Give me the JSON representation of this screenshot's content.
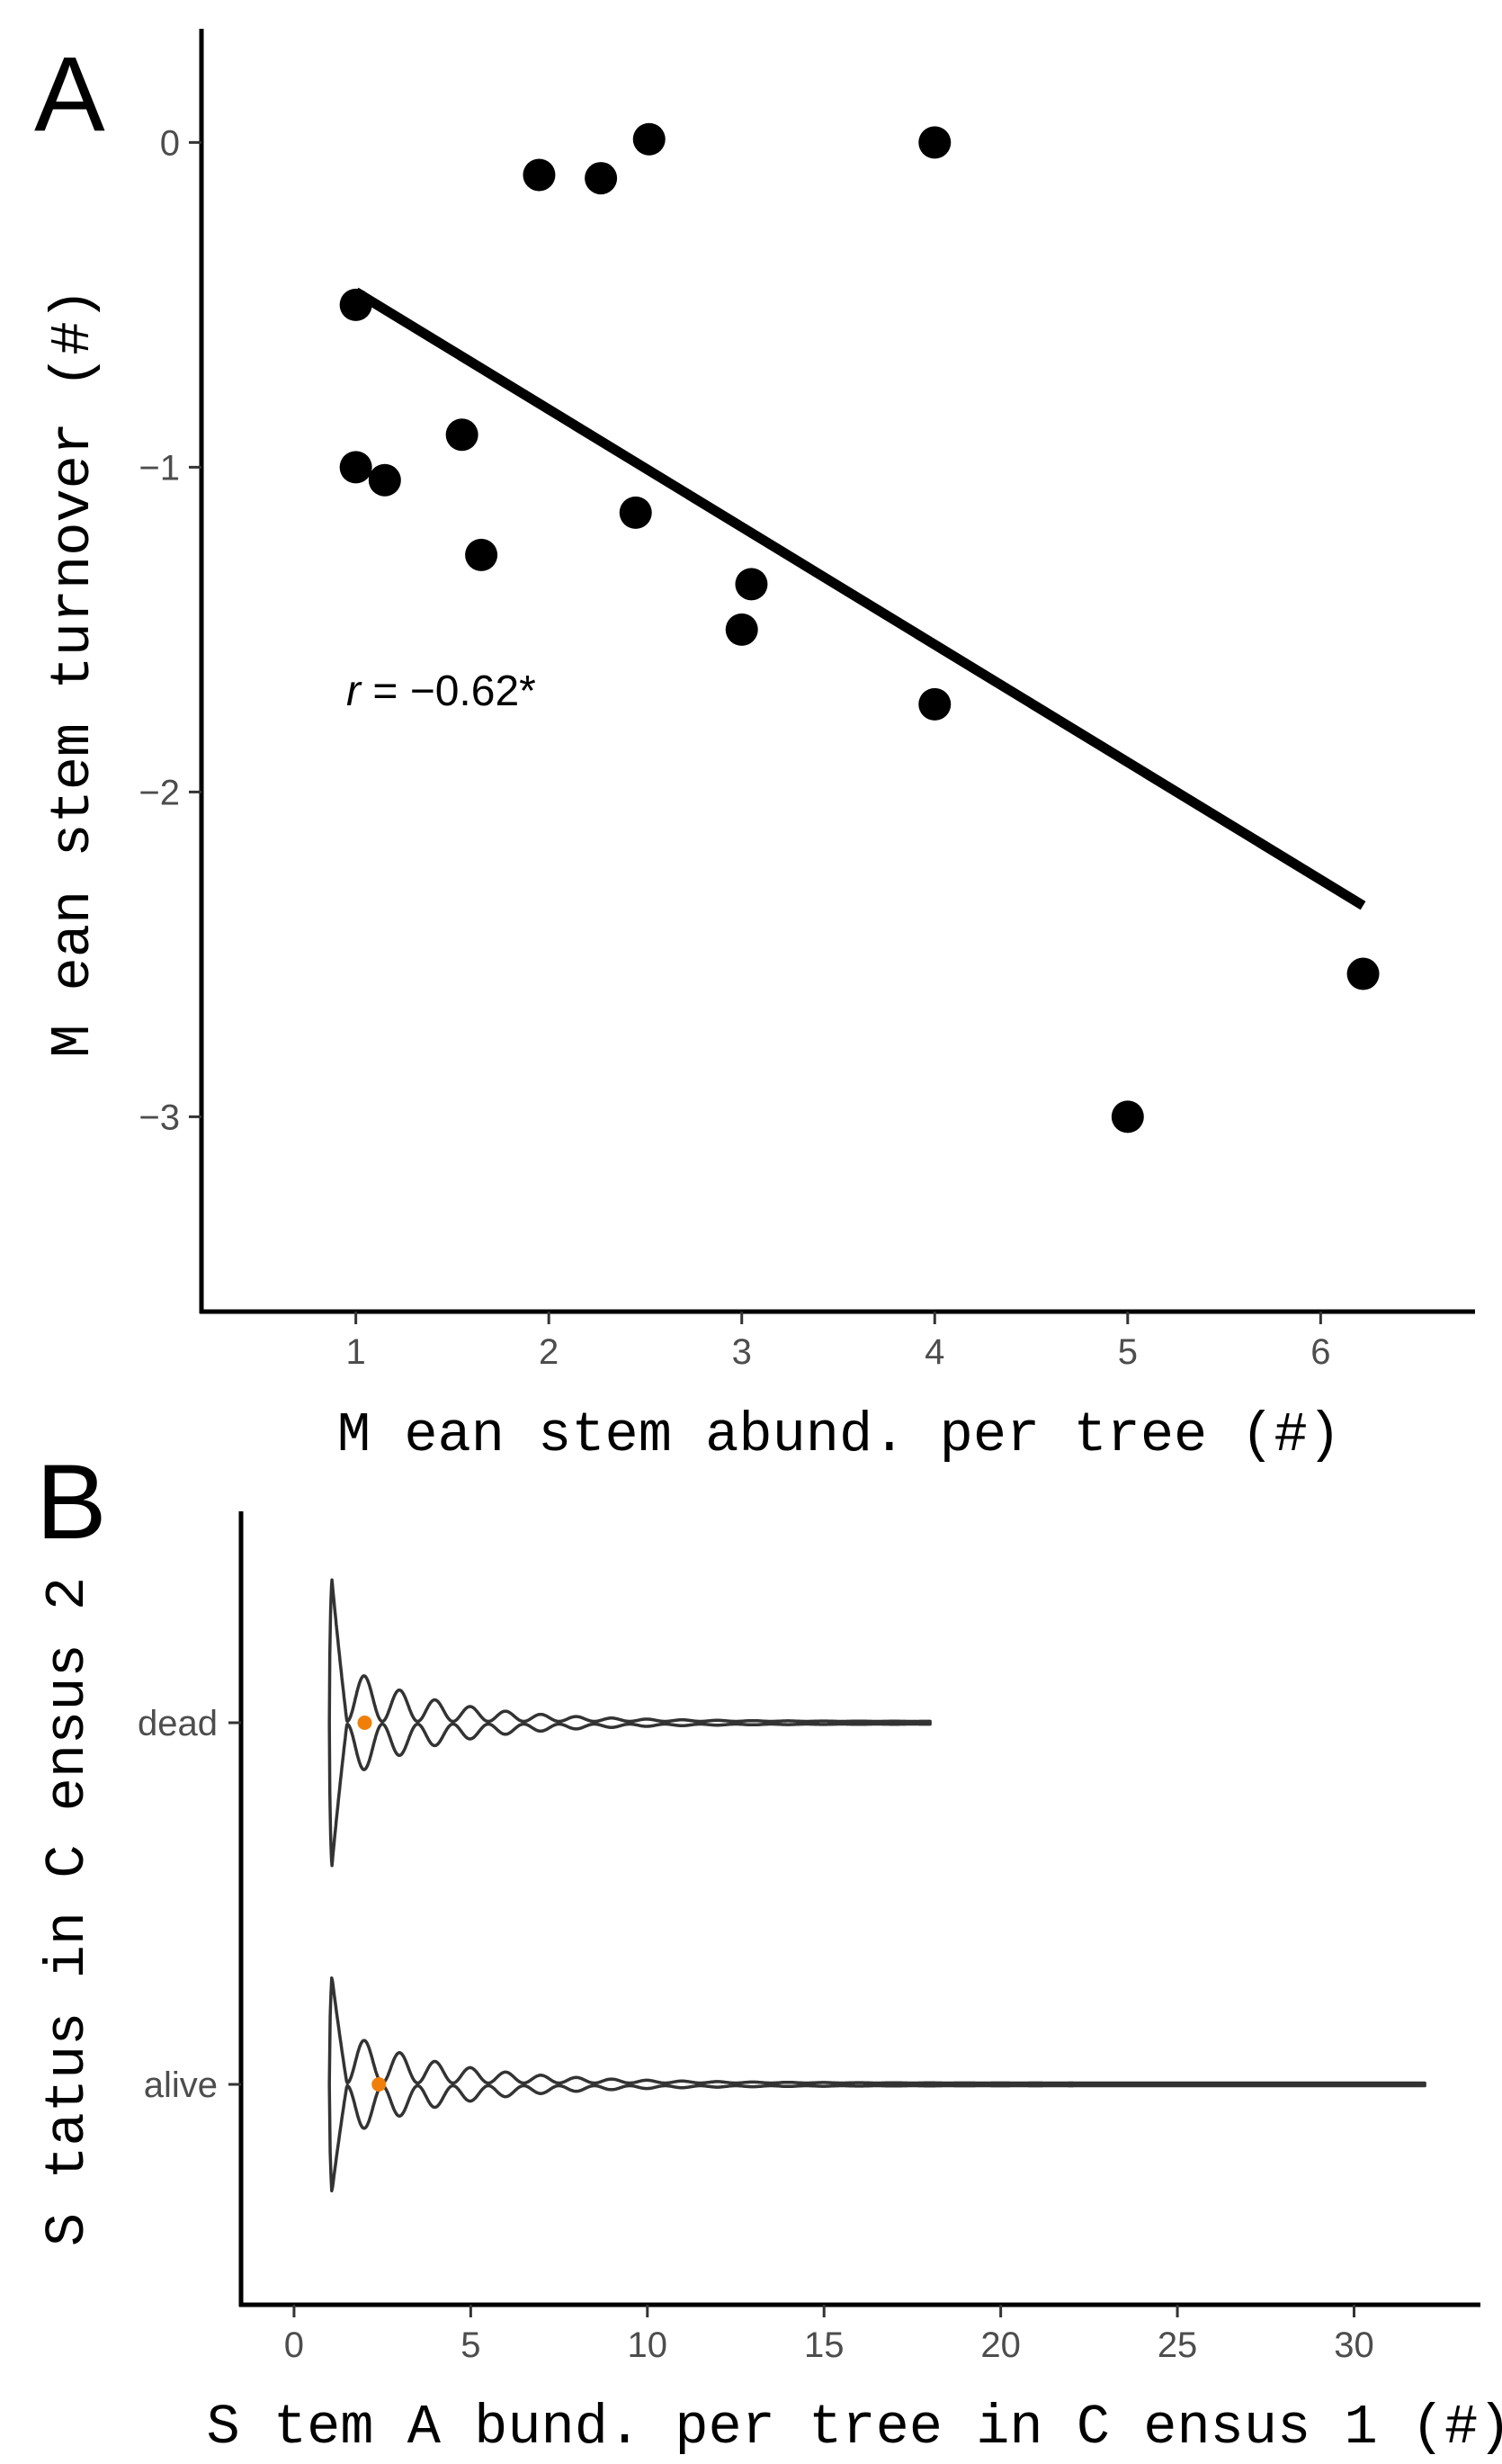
{
  "chart_data": [
    {
      "panel": "A",
      "type": "scatter",
      "xlabel": "M ean stem  abund. per tree (#)",
      "ylabel": "M ean stem  turnover (#)",
      "xlim": [
        0.2,
        6.8
      ],
      "ylim": [
        -3.6,
        0.35
      ],
      "xticks": [
        1,
        2,
        3,
        4,
        5,
        6
      ],
      "yticks": [
        0,
        -1,
        -2,
        -3
      ],
      "ytick_labels": [
        "0",
        "−1",
        "−2",
        "−3"
      ],
      "x": [
        1.0,
        1.0,
        1.15,
        1.55,
        1.65,
        1.95,
        2.27,
        2.45,
        2.52,
        3.0,
        3.05,
        4.0,
        4.0,
        5.0,
        6.22
      ],
      "y": [
        -0.5,
        -1.0,
        -1.04,
        -0.9,
        -1.27,
        -0.1,
        -0.11,
        -1.14,
        0.01,
        -1.5,
        -1.36,
        0.0,
        -1.73,
        -3.0,
        -2.56
      ],
      "trend_line": {
        "x": [
          1.0,
          6.22
        ],
        "y": [
          -0.46,
          -2.35
        ]
      },
      "annotation": {
        "italic": "r",
        "rest": " = −0.62*"
      },
      "grid": false
    },
    {
      "panel": "B",
      "type": "violin",
      "xlabel": "S tem  A bund. per tree in C ensus 1 (#)",
      "ylabel": "S tatus in C ensus 2",
      "xlim": [
        -1.5,
        33.5
      ],
      "xticks": [
        0,
        5,
        10,
        15,
        20,
        25,
        30
      ],
      "categories": [
        "dead",
        "alive"
      ],
      "series": [
        {
          "name": "dead",
          "min": 1,
          "max": 18,
          "mean": 2.0
        },
        {
          "name": "alive",
          "min": 1,
          "max": 32,
          "mean": 2.4
        }
      ],
      "mean_color": "#f07f09",
      "grid": false
    }
  ]
}
